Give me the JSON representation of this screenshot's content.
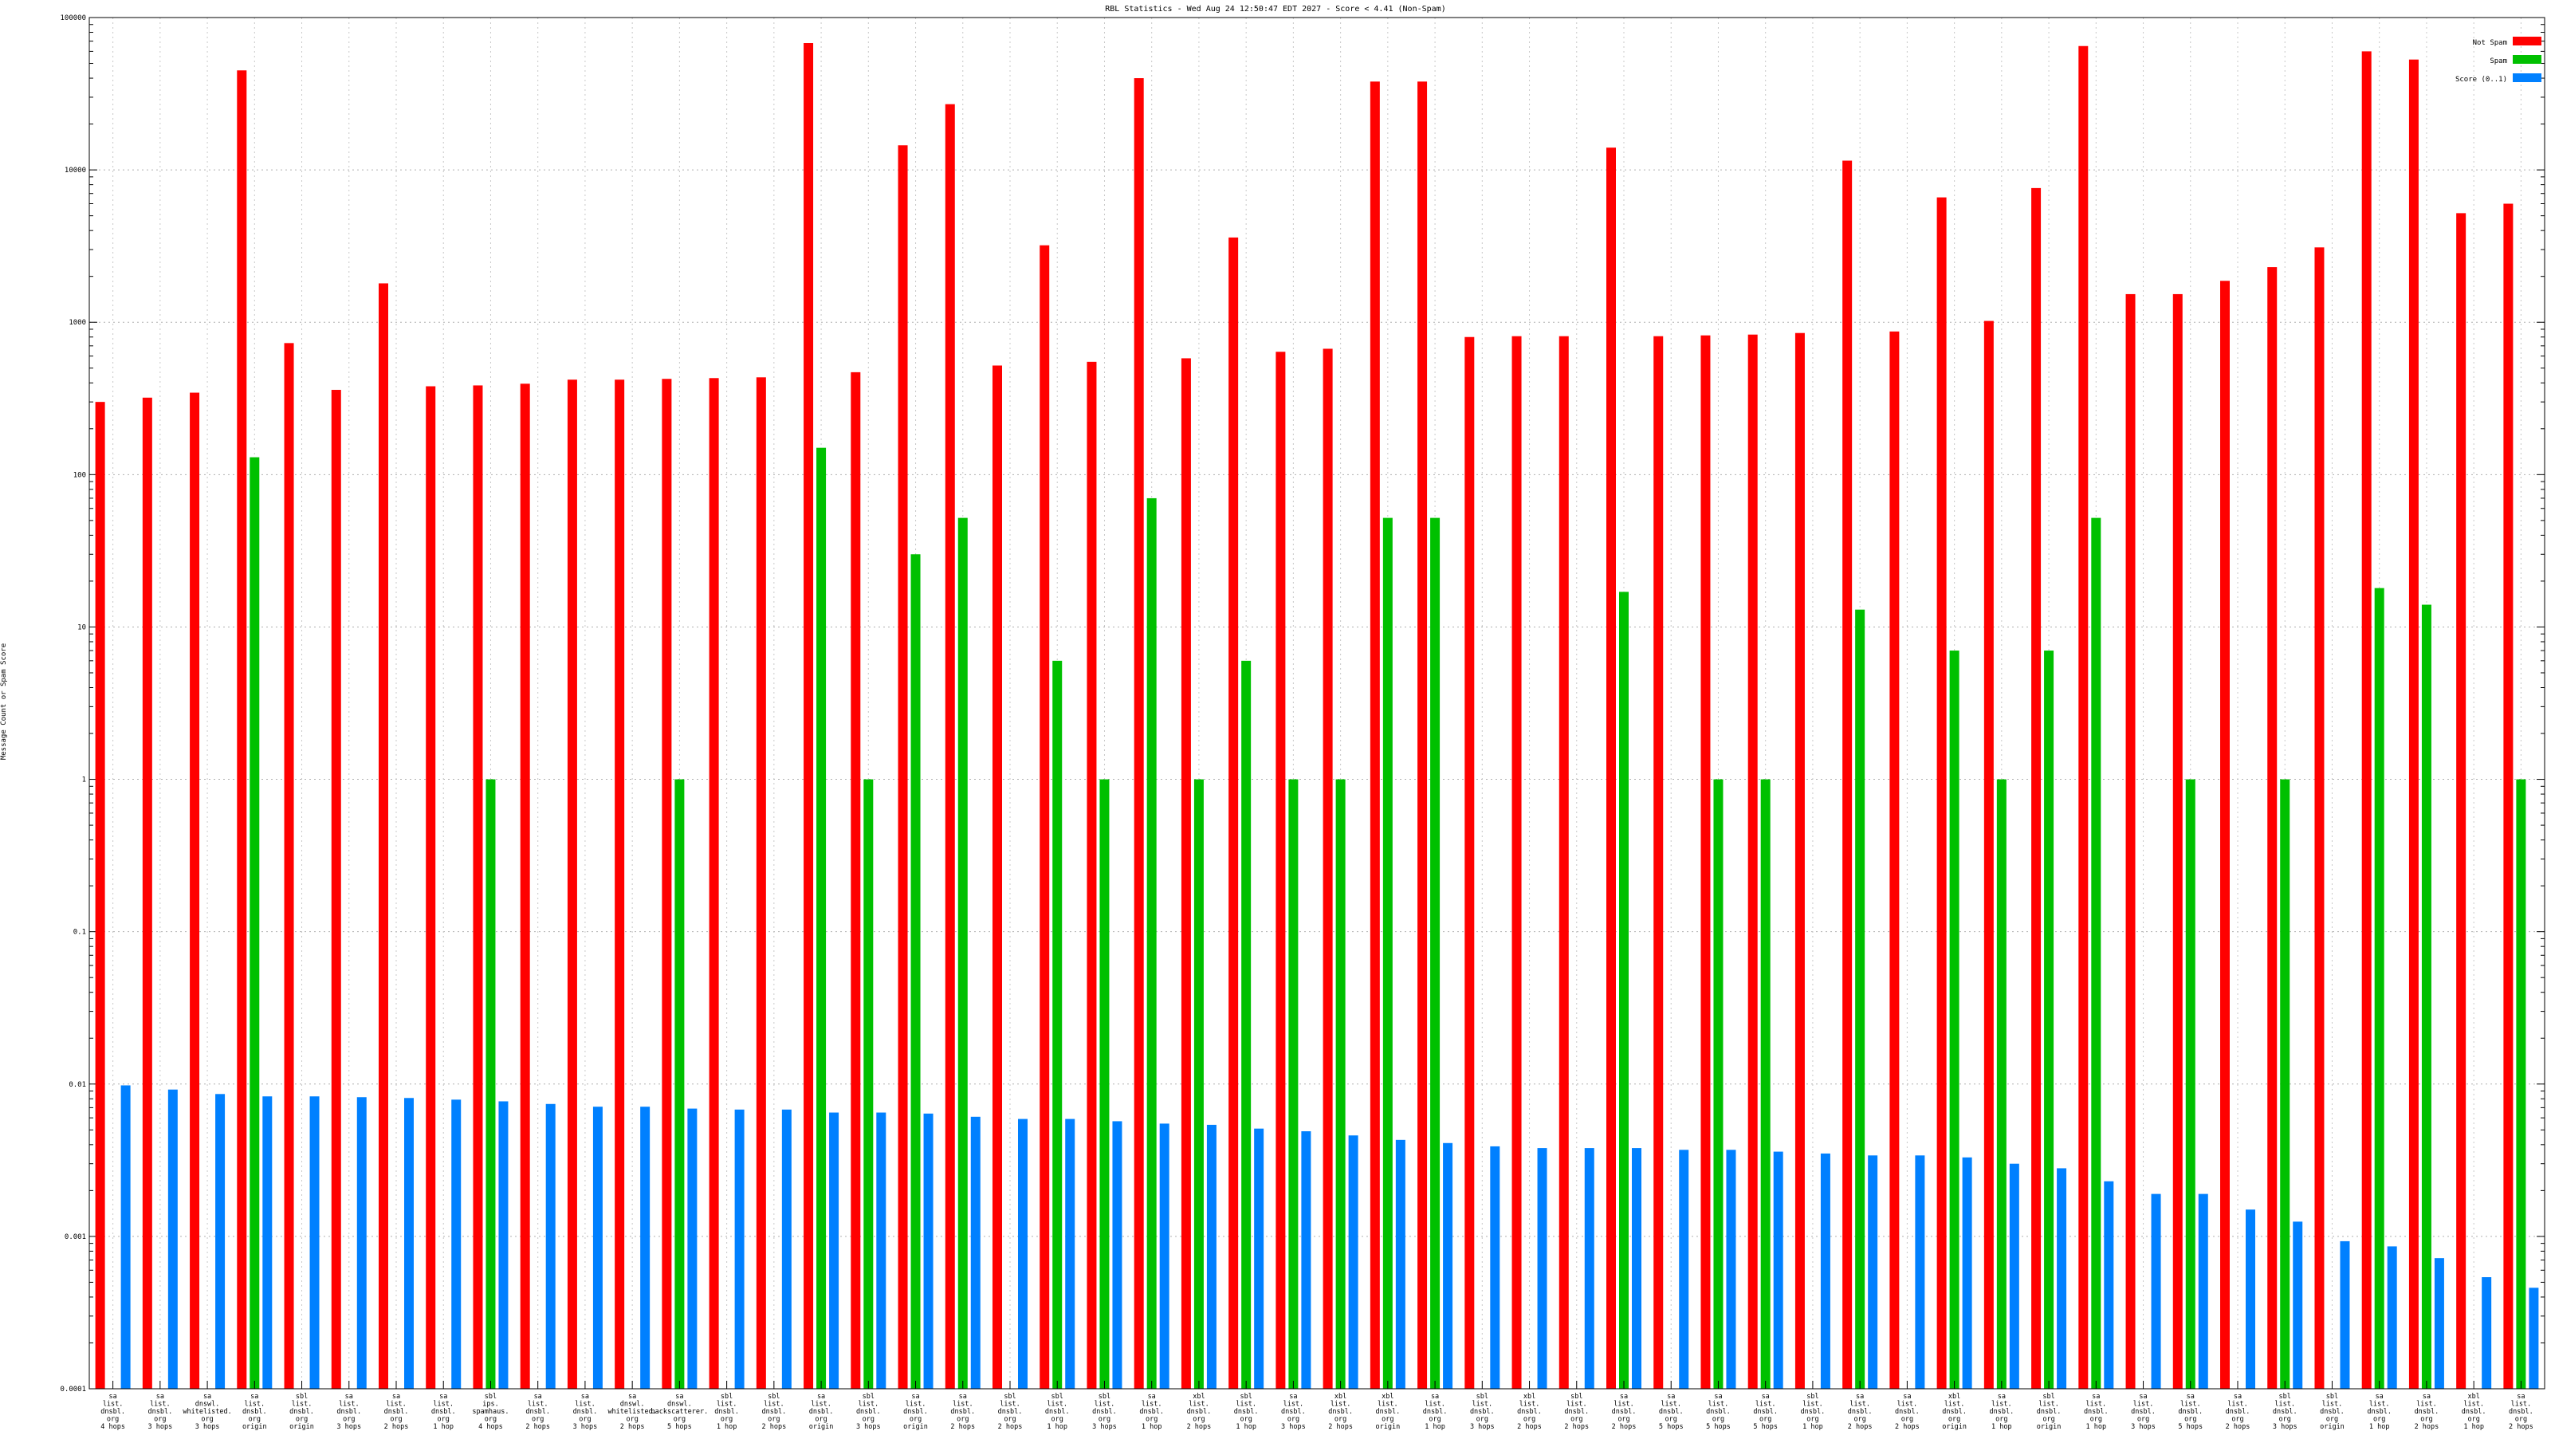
{
  "chart_data": {
    "type": "bar",
    "title": "RBL Statistics - Wed Aug 24 12:50:47 EDT 2027 - Score < 4.41 (Non-Spam)",
    "ylabel": "Message Count or Spam Score",
    "xlabel": "",
    "yscale": "log",
    "ylim": [
      0.0001,
      100000
    ],
    "yticks": [
      0.0001,
      0.001,
      0.01,
      0.1,
      1,
      10,
      100,
      1000,
      10000,
      100000
    ],
    "ytick_labels": [
      "0.0001",
      "0.001",
      "0.01",
      "0.1",
      "1",
      "10",
      "100",
      "1000",
      "10000",
      "100000"
    ],
    "grid": true,
    "legend_position": "top-right",
    "colors": {
      "not_spam": "#ff0000",
      "spam": "#00c000",
      "score": "#0080ff"
    },
    "categories": [
      [
        "sa",
        "list.",
        "dnsbl.",
        "org",
        "4 hops"
      ],
      [
        "sa",
        "list.",
        "dnsbl.",
        "org",
        "3 hops"
      ],
      [
        "sa",
        "dnswl.",
        "whitelisted.",
        "org",
        "3 hops"
      ],
      [
        "sa",
        "list.",
        "dnsbl.",
        "org",
        "origin"
      ],
      [
        "sbl",
        "list.",
        "dnsbl.",
        "org",
        "origin"
      ],
      [
        "sa",
        "list.",
        "dnsbl.",
        "org",
        "3 hops"
      ],
      [
        "sa",
        "list.",
        "dnsbl.",
        "org",
        "2 hops"
      ],
      [
        "sa",
        "list.",
        "dnsbl.",
        "org",
        "1 hop"
      ],
      [
        "sbl",
        "ips.",
        "spamhaus.",
        "org",
        "4 hops"
      ],
      [
        "sa",
        "list.",
        "dnsbl.",
        "org",
        "2 hops"
      ],
      [
        "sa",
        "list.",
        "dnsbl.",
        "org",
        "3 hops"
      ],
      [
        "sa",
        "dnswl.",
        "whitelisted.",
        "org",
        "2 hops"
      ],
      [
        "sa",
        "dnswl.",
        "backscatterer.",
        "org",
        "5 hops"
      ],
      [
        "sbl",
        "list.",
        "dnsbl.",
        "org",
        "1 hop"
      ],
      [
        "sbl",
        "list.",
        "dnsbl.",
        "org",
        "2 hops"
      ],
      [
        "sa",
        "list.",
        "dnsbl.",
        "org",
        "origin"
      ],
      [
        "sbl",
        "list.",
        "dnsbl.",
        "org",
        "3 hops"
      ],
      [
        "sa",
        "list.",
        "dnsbl.",
        "org",
        "origin"
      ],
      [
        "sa",
        "list.",
        "dnsbl.",
        "org",
        "2 hops"
      ],
      [
        "sbl",
        "list.",
        "dnsbl.",
        "org",
        "2 hops"
      ],
      [
        "sbl",
        "list.",
        "dnsbl.",
        "org",
        "1 hop"
      ],
      [
        "sbl",
        "list.",
        "dnsbl.",
        "org",
        "3 hops"
      ],
      [
        "sa",
        "list.",
        "dnsbl.",
        "org",
        "1 hop"
      ],
      [
        "xbl",
        "list.",
        "dnsbl.",
        "org",
        "2 hops"
      ],
      [
        "sbl",
        "list.",
        "dnsbl.",
        "org",
        "1 hop"
      ],
      [
        "sa",
        "list.",
        "dnsbl.",
        "org",
        "3 hops"
      ],
      [
        "xbl",
        "list.",
        "dnsbl.",
        "org",
        "2 hops"
      ],
      [
        "xbl",
        "list.",
        "dnsbl.",
        "org",
        "origin"
      ],
      [
        "sa",
        "list.",
        "dnsbl.",
        "org",
        "1 hop"
      ],
      [
        "sbl",
        "list.",
        "dnsbl.",
        "org",
        "3 hops"
      ],
      [
        "xbl",
        "list.",
        "dnsbl.",
        "org",
        "2 hops"
      ],
      [
        "sbl",
        "list.",
        "dnsbl.",
        "org",
        "2 hops"
      ],
      [
        "sa",
        "list.",
        "dnsbl.",
        "org",
        "2 hops"
      ],
      [
        "sa",
        "list.",
        "dnsbl.",
        "org",
        "5 hops"
      ],
      [
        "sa",
        "list.",
        "dnsbl.",
        "org",
        "5 hops"
      ],
      [
        "sa",
        "list.",
        "dnsbl.",
        "org",
        "5 hops"
      ],
      [
        "sbl",
        "list.",
        "dnsbl.",
        "org",
        "1 hop"
      ],
      [
        "sa",
        "list.",
        "dnsbl.",
        "org",
        "2 hops"
      ],
      [
        "sa",
        "list.",
        "dnsbl.",
        "org",
        "2 hops"
      ],
      [
        "xbl",
        "list.",
        "dnsbl.",
        "org",
        "origin"
      ],
      [
        "sa",
        "list.",
        "dnsbl.",
        "org",
        "1 hop"
      ],
      [
        "sbl",
        "list.",
        "dnsbl.",
        "org",
        "origin"
      ],
      [
        "sa",
        "list.",
        "dnsbl.",
        "org",
        "1 hop"
      ],
      [
        "sa",
        "list.",
        "dnsbl.",
        "org",
        "3 hops"
      ],
      [
        "sa",
        "list.",
        "dnsbl.",
        "org",
        "5 hops"
      ],
      [
        "sa",
        "list.",
        "dnsbl.",
        "org",
        "2 hops"
      ],
      [
        "sbl",
        "list.",
        "dnsbl.",
        "org",
        "3 hops"
      ],
      [
        "sbl",
        "list.",
        "dnsbl.",
        "org",
        "origin"
      ],
      [
        "sa",
        "list.",
        "dnsbl.",
        "org",
        "1 hop"
      ],
      [
        "sa",
        "list.",
        "dnsbl.",
        "org",
        "2 hops"
      ],
      [
        "xbl",
        "list.",
        "dnsbl.",
        "org",
        "1 hop"
      ],
      [
        "sa",
        "list.",
        "dnsbl.",
        "org",
        "2 hops"
      ]
    ],
    "series": [
      {
        "name": "Not Spam",
        "values": [
          300,
          320,
          345,
          45000,
          730,
          360,
          1800,
          380,
          385,
          395,
          420,
          420,
          425,
          430,
          435,
          68000,
          470,
          14500,
          27000,
          520,
          3200,
          550,
          40000,
          580,
          3600,
          640,
          670,
          38000,
          38000,
          800,
          810,
          810,
          14000,
          810,
          820,
          830,
          850,
          11500,
          870,
          6600,
          1020,
          7600,
          65000,
          1530,
          1530,
          1870,
          2300,
          3100,
          60000,
          53000,
          5200,
          6000
        ]
      },
      {
        "name": "Spam",
        "values": [
          null,
          null,
          null,
          130,
          null,
          null,
          null,
          null,
          1,
          null,
          null,
          null,
          1,
          null,
          null,
          150,
          1,
          30,
          52,
          null,
          6,
          1,
          70,
          1,
          6,
          1,
          1,
          52,
          52,
          null,
          null,
          null,
          17,
          null,
          1,
          1,
          null,
          13,
          null,
          7,
          1,
          7,
          52,
          null,
          1,
          null,
          1,
          null,
          18,
          14,
          null,
          1
        ]
      },
      {
        "name": "Score (0..1)",
        "values": [
          0.0098,
          0.0092,
          0.0086,
          0.0083,
          0.0083,
          0.0082,
          0.0081,
          0.0079,
          0.0077,
          0.0074,
          0.0071,
          0.0071,
          0.0069,
          0.0068,
          0.0068,
          0.0065,
          0.0065,
          0.0064,
          0.0061,
          0.0059,
          0.0059,
          0.0057,
          0.0055,
          0.0054,
          0.0051,
          0.0049,
          0.0046,
          0.0043,
          0.0041,
          0.0039,
          0.0038,
          0.0038,
          0.0038,
          0.0037,
          0.0037,
          0.0036,
          0.0035,
          0.0034,
          0.0034,
          0.0033,
          0.003,
          0.0028,
          0.0023,
          0.0019,
          0.0019,
          0.0015,
          0.00125,
          0.00093,
          0.00086,
          0.00072,
          0.00054,
          0.00046
        ]
      }
    ]
  }
}
